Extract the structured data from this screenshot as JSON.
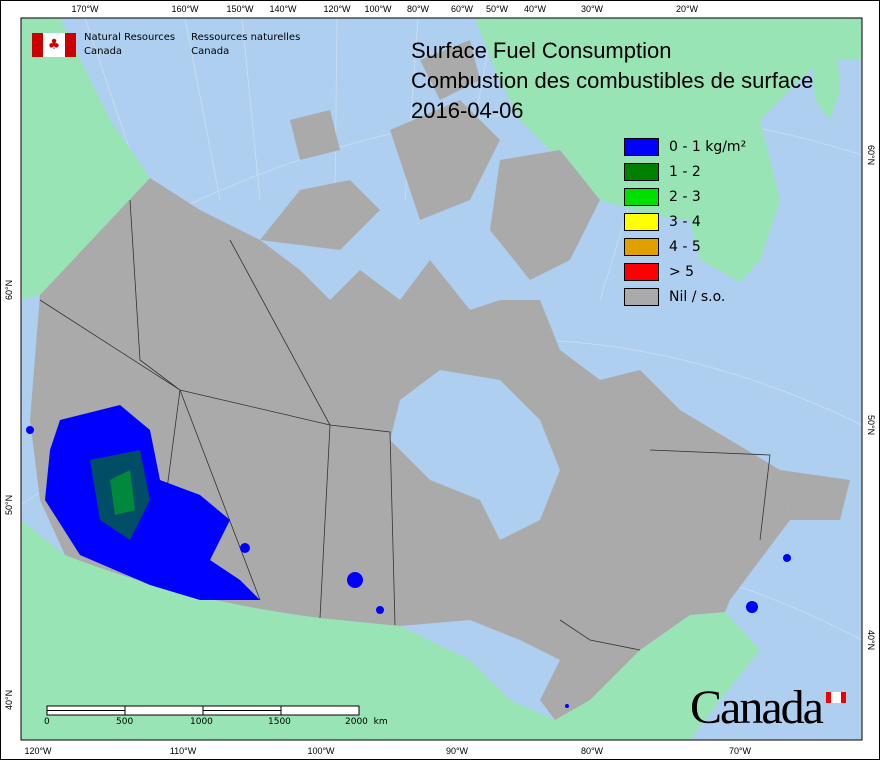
{
  "title": {
    "line1": "Surface Fuel Consumption",
    "line2": "Combustion des combustibles de surface",
    "date": "2016-04-06"
  },
  "agency": {
    "en_line1": "Natural Resources",
    "en_line2": "Canada",
    "fr_line1": "Ressources naturelles",
    "fr_line2": "Canada"
  },
  "wordmark": "Canada",
  "legend": [
    {
      "label": "0 - 1 kg/m²",
      "color": "#0000ff"
    },
    {
      "label": "1 - 2",
      "color": "#008000"
    },
    {
      "label": "2 - 3",
      "color": "#00e000"
    },
    {
      "label": "3 - 4",
      "color": "#ffff00"
    },
    {
      "label": "4 - 5",
      "color": "#e0a000"
    },
    {
      "label": "> 5",
      "color": "#ff0000"
    },
    {
      "label": "Nil / s.o.",
      "color": "#aaaaaa"
    }
  ],
  "colors": {
    "ocean": "#aecff0",
    "foreign_land": "#98e4b4",
    "canada_nil": "#aaaaaa",
    "boundary": "#333333"
  },
  "axes": {
    "top": [
      "170°W",
      "160°W",
      "150°W",
      "140°W",
      "120°W",
      "100°W",
      "80°W",
      "60°W",
      "50°W",
      "40°W",
      "30°W",
      "20°W"
    ],
    "bottom": [
      "120°W",
      "110°W",
      "100°W",
      "90°W",
      "80°W",
      "70°W"
    ],
    "left": [
      "60°N",
      "50°N",
      "40°N"
    ],
    "right": [
      "60°N",
      "50°N",
      "40°N"
    ]
  },
  "scalebar": {
    "labels": [
      "0",
      "500",
      "1000",
      "1500",
      "2000  km"
    ]
  }
}
